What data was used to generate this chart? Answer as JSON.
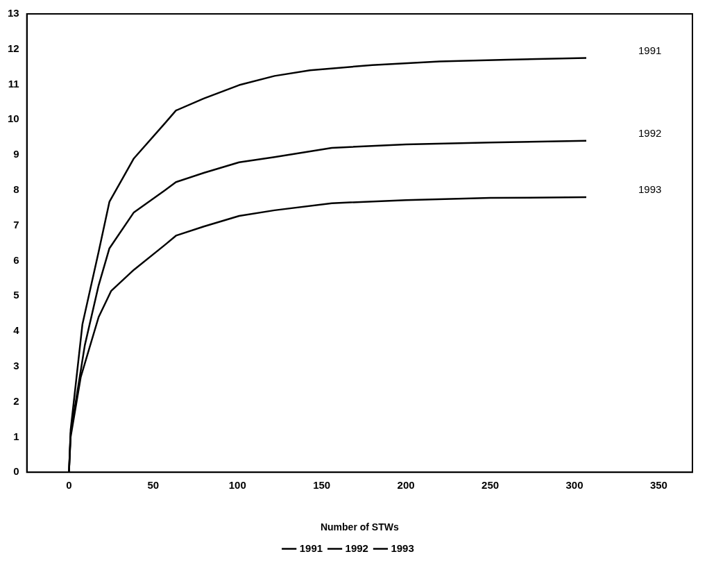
{
  "chart_data": {
    "type": "line",
    "xlabel": "Number of STWs",
    "xlim": [
      -25,
      370
    ],
    "xticks": [
      0,
      50,
      100,
      150,
      200,
      250,
      300,
      350
    ],
    "ylim": [
      0,
      13
    ],
    "yticks": [
      0,
      1,
      2,
      3,
      4,
      5,
      6,
      7,
      8,
      9,
      10,
      11,
      12,
      13
    ],
    "grid": false,
    "legend": "bottom",
    "marker": "none",
    "line_style": "solid",
    "series": [
      {
        "name": "1991",
        "color": "#000000",
        "x": [
          0,
          1,
          8,
          17.6,
          24,
          38.5,
          57,
          63.5,
          80,
          101,
          122,
          143,
          180,
          220,
          260,
          307
        ],
        "values": [
          0,
          1.2,
          4.2,
          6.25,
          7.67,
          8.9,
          9.9,
          10.26,
          10.6,
          10.98,
          11.24,
          11.4,
          11.55,
          11.65,
          11.7,
          11.75
        ]
      },
      {
        "name": "1992",
        "color": "#000000",
        "x": [
          0,
          1,
          9.4,
          17.6,
          24,
          38.5,
          57,
          63.5,
          80,
          101,
          122,
          156,
          200,
          250,
          307
        ],
        "values": [
          0,
          1.1,
          3.6,
          5.3,
          6.35,
          7.37,
          8.0,
          8.23,
          8.49,
          8.79,
          8.94,
          9.2,
          9.3,
          9.35,
          9.4
        ]
      },
      {
        "name": "1993",
        "color": "#000000",
        "x": [
          0,
          1,
          7,
          17.6,
          25,
          38.5,
          57,
          63.5,
          80,
          101,
          122,
          156,
          200,
          250,
          307
        ],
        "values": [
          0,
          1.0,
          2.7,
          4.4,
          5.14,
          5.74,
          6.45,
          6.71,
          6.97,
          7.27,
          7.43,
          7.63,
          7.72,
          7.78,
          7.8
        ]
      }
    ],
    "annotations": [
      "1991",
      "1992",
      "1993"
    ]
  }
}
